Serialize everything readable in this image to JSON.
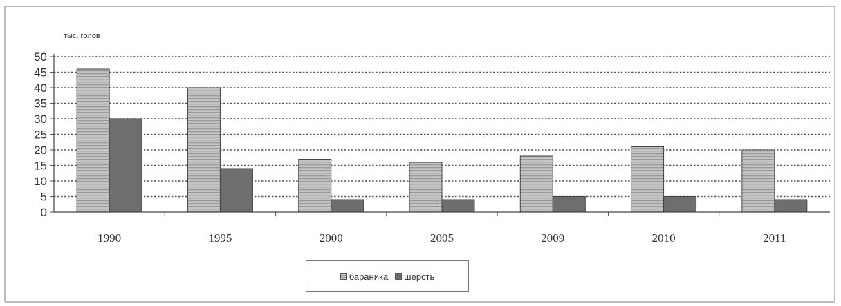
{
  "chart_data": {
    "type": "bar",
    "unit_label": "тыс. голов",
    "categories": [
      "1990",
      "1995",
      "2000",
      "2005",
      "2009",
      "2010",
      "2011"
    ],
    "series": [
      {
        "name": "бараника",
        "values": [
          46,
          40,
          17,
          16,
          18,
          21,
          20
        ],
        "color": "#b8b8b8",
        "pattern": "horizontal-stripes"
      },
      {
        "name": "шерсть",
        "values": [
          30,
          14,
          4,
          4,
          5,
          5,
          4
        ],
        "color": "#6e6e6e",
        "pattern": "solid"
      }
    ],
    "yticks": [
      0,
      5,
      10,
      15,
      20,
      25,
      30,
      35,
      40,
      45,
      50
    ],
    "ylim": [
      0,
      50
    ],
    "grid": true,
    "legend_position": "bottom"
  }
}
